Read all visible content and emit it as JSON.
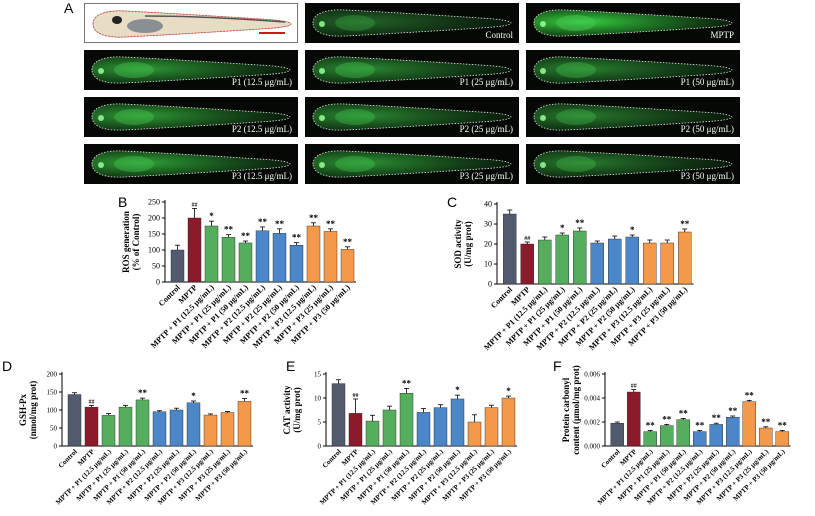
{
  "panel_letters": {
    "A": "A",
    "B": "B",
    "C": "C",
    "D": "D",
    "E": "E",
    "F": "F"
  },
  "images": [
    {
      "label": "",
      "photo": true,
      "glow": 0
    },
    {
      "label": "Control",
      "photo": false,
      "glow": 0.35
    },
    {
      "label": "MPTP",
      "photo": false,
      "glow": 1.0
    },
    {
      "label": "P1 (12.5 μg/mL)",
      "photo": false,
      "glow": 0.7
    },
    {
      "label": "P1 (25 μg/mL)",
      "photo": false,
      "glow": 0.6
    },
    {
      "label": "P1 (50 μg/mL)",
      "photo": false,
      "glow": 0.55
    },
    {
      "label": "P2 (12.5 μg/mL)",
      "photo": false,
      "glow": 0.7
    },
    {
      "label": "P2 (25 μg/mL)",
      "photo": false,
      "glow": 0.6
    },
    {
      "label": "P2 (50 μg/mL)",
      "photo": false,
      "glow": 0.5
    },
    {
      "label": "P3 (12.5 μg/mL)",
      "photo": false,
      "glow": 0.75
    },
    {
      "label": "P3 (25 μg/mL)",
      "photo": false,
      "glow": 0.65
    },
    {
      "label": "P3 (50 μg/mL)",
      "photo": false,
      "glow": 0.5
    }
  ],
  "chart_data": [
    {
      "id": "B",
      "type": "bar",
      "ylabel": "ROS generation\n(% of Control)",
      "ylim": [
        0,
        250
      ],
      "yticks": [
        0,
        50,
        100,
        150,
        200,
        250
      ],
      "categories": [
        "Control",
        "MPTP",
        "MPTP + P1 (12.5 μg/mL)",
        "MPTP + P1 (25 μg/mL)",
        "MPTP + P1 (50 μg/mL)",
        "MPTP + P2 (12.5 μg/mL)",
        "MPTP + P2 (25 μg/mL)",
        "MPTP + P2 (50 μg/mL)",
        "MPTP + P3 (12.5 μg/mL)",
        "MPTP + P3 (25 μg/mL)",
        "MPTP + P3 (50 μg/mL)"
      ],
      "values": [
        100,
        200,
        175,
        140,
        122,
        160,
        152,
        115,
        175,
        158,
        102
      ],
      "errors": [
        15,
        30,
        15,
        8,
        6,
        12,
        14,
        8,
        10,
        8,
        8
      ],
      "annotations": [
        "",
        "##",
        "*",
        "**",
        "**",
        "**",
        "**",
        "**",
        "**",
        "**",
        "**"
      ]
    },
    {
      "id": "C",
      "type": "bar",
      "ylabel": "SOD activity\n(U/mg prot)",
      "ylim": [
        0,
        40
      ],
      "yticks": [
        0,
        10,
        20,
        30,
        40
      ],
      "categories": [
        "Control",
        "MPTP",
        "MPTP + P1 (12.5 μg/mL)",
        "MPTP + P1 (25 μg/mL)",
        "MPTP + P1 (50 μg/mL)",
        "MPTP + P2 (12.5 μg/mL)",
        "MPTP + P2 (25 μg/mL)",
        "MPTP + P2 (50 μg/mL)",
        "MPTP + P3 (12.5 μg/mL)",
        "MPTP + P3 (25 μg/mL)",
        "MPTP + P3 (50 μg/mL)"
      ],
      "values": [
        35,
        20,
        22,
        24.5,
        26.5,
        20.5,
        22.5,
        23.5,
        20.5,
        20.5,
        26
      ],
      "errors": [
        2,
        1,
        1.5,
        1,
        1.5,
        1,
        1.5,
        1,
        1.5,
        1.5,
        1.5
      ],
      "annotations": [
        "",
        "##",
        "",
        "*",
        "**",
        "",
        "",
        "*",
        "",
        "",
        "**"
      ]
    },
    {
      "id": "D",
      "type": "bar",
      "ylabel": "GSH-Px\n(nmol/mg prot)",
      "ylim": [
        0,
        200
      ],
      "yticks": [
        0,
        50,
        100,
        150,
        200
      ],
      "categories": [
        "Control",
        "MPTP",
        "MPTP + P1 (12.5 μg/mL)",
        "MPTP + P1 (25 μg/mL)",
        "MPTP + P1 (50 μg/mL)",
        "MPTP + P2 (12.5 μg/mL)",
        "MPTP + P2 (25 μg/mL)",
        "MPTP + P2 (50 μg/mL)",
        "MPTP + P3 (12.5 μg/mL)",
        "MPTP + P3 (25 μg/mL)",
        "MPTP + P3 (50 μg/mL)"
      ],
      "values": [
        143,
        108,
        85,
        108,
        128,
        95,
        100,
        120,
        86,
        93,
        124
      ],
      "errors": [
        5,
        5,
        5,
        5,
        5,
        3,
        5,
        5,
        3,
        3,
        8
      ],
      "annotations": [
        "",
        "##",
        "",
        "",
        "**",
        "",
        "",
        "*",
        "",
        "",
        "**"
      ]
    },
    {
      "id": "E",
      "type": "bar",
      "ylabel": "CAT activity\n(U/mg prot)",
      "ylim": [
        0,
        15
      ],
      "yticks": [
        0,
        5,
        10,
        15
      ],
      "categories": [
        "Control",
        "MPTP",
        "MPTP + P1 (12.5 μg/mL)",
        "MPTP + P1 (25 μg/mL)",
        "MPTP + P1 (50 μg/mL)",
        "MPTP + P2 (12.5 μg/mL)",
        "MPTP + P2 (25 μg/mL)",
        "MPTP + P2 (50 μg/mL)",
        "MPTP + P3 (12.5 μg/mL)",
        "MPTP + P3 (25 μg/mL)",
        "MPTP + P3 (50 μg/mL)"
      ],
      "values": [
        13,
        6.8,
        5.2,
        7.5,
        11,
        7,
        8,
        9.8,
        5,
        8,
        10
      ],
      "errors": [
        0.8,
        3,
        1.2,
        0.8,
        1,
        0.8,
        0.6,
        0.8,
        1.5,
        0.5,
        0.4
      ],
      "annotations": [
        "",
        "##",
        "",
        "",
        "**",
        "",
        "",
        "*",
        "",
        "",
        "*"
      ]
    },
    {
      "id": "F",
      "type": "bar",
      "ylabel": "Protein carbonyl\ncontent (μmol/mg prot)",
      "ylim": [
        0,
        0.006
      ],
      "yticks": [
        0,
        0.002,
        0.004,
        0.006
      ],
      "ytick_labels": [
        "0.000",
        "0.002",
        "0.004",
        "0.006"
      ],
      "categories": [
        "Control",
        "MPTP",
        "MPTP + P1 (12.5 μg/mL)",
        "MPTP + P1 (25 μg/mL)",
        "MPTP + P1 (50 μg/mL)",
        "MPTP + P2 (12.5 μg/mL)",
        "MPTP + P2 (25 μg/mL)",
        "MPTP + P2 (50 μg/mL)",
        "MPTP + P3 (12.5 μg/mL)",
        "MPTP + P3 (25 μg/mL)",
        "MPTP + P3 (50 μg/mL)"
      ],
      "values": [
        0.0019,
        0.0045,
        0.0012,
        0.0017,
        0.0022,
        0.0012,
        0.0018,
        0.0024,
        0.0037,
        0.0015,
        0.0012
      ],
      "errors": [
        0.0001,
        0.0002,
        0.0001,
        0.0001,
        0.0001,
        0.0001,
        0.0001,
        0.0001,
        0.0001,
        0.0001,
        0.0001
      ],
      "annotations": [
        "",
        "##",
        "**",
        "**",
        "**",
        "**",
        "**",
        "**",
        "**",
        "**",
        "**"
      ]
    }
  ],
  "colors": [
    "#525b6e",
    "#8b1a2a",
    "#55ad5e",
    "#55ad5e",
    "#55ad5e",
    "#4a86c8",
    "#4a86c8",
    "#4a86c8",
    "#f4984a",
    "#f4984a",
    "#f4984a"
  ]
}
